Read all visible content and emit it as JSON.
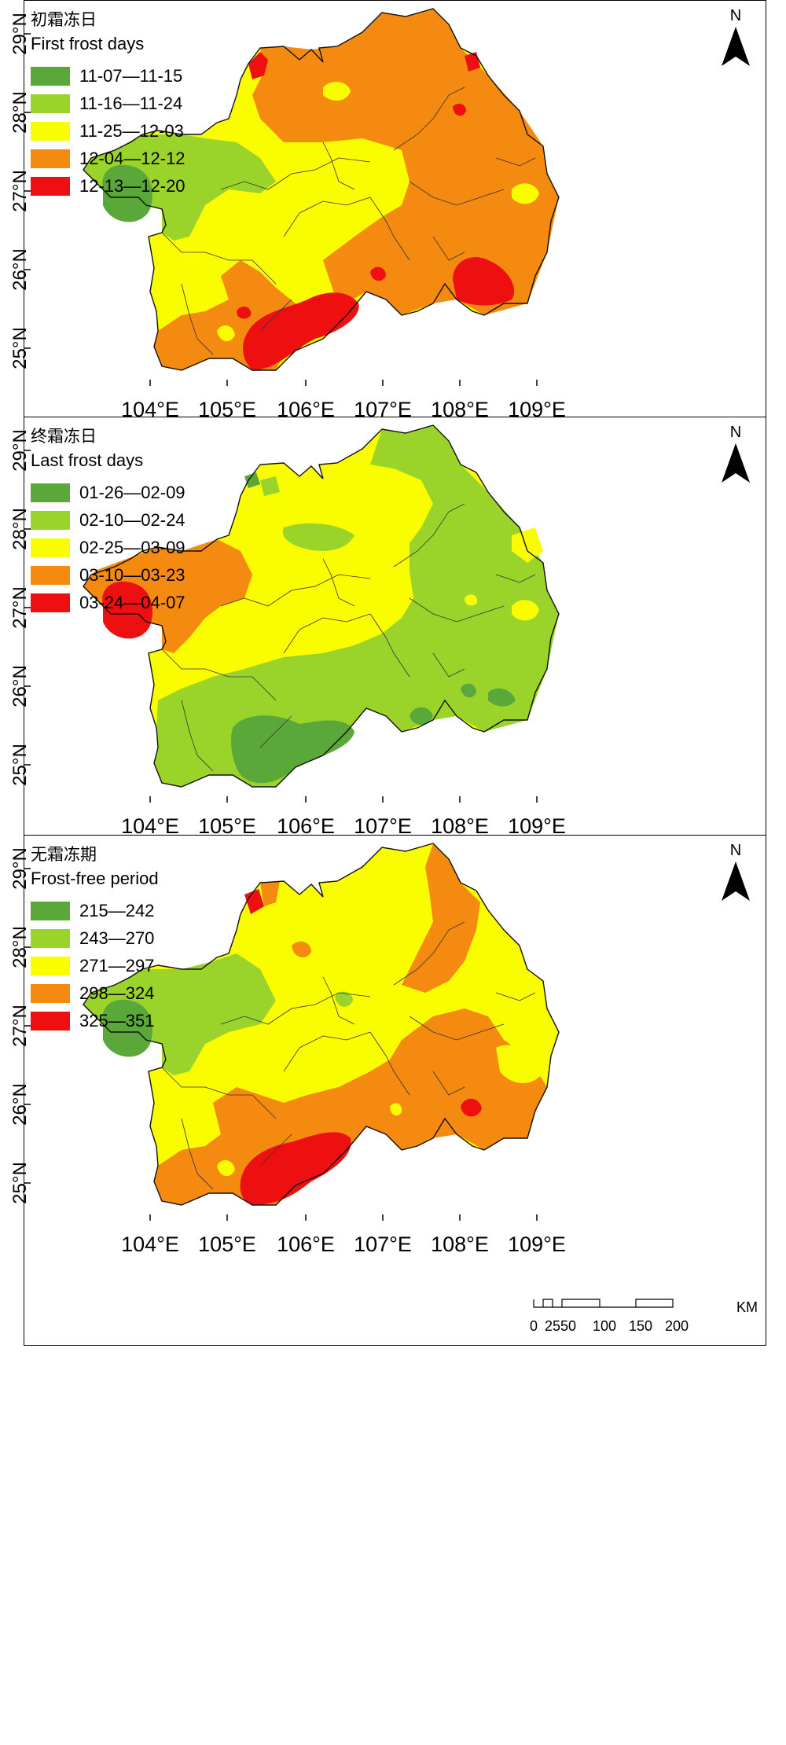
{
  "panels": [
    {
      "title_cn": "初霜冻日",
      "title_en": "First frost days",
      "legend": [
        {
          "label": "11-07—11-15",
          "color": "#5aa83a"
        },
        {
          "label": "11-16—11-24",
          "color": "#9ad42a"
        },
        {
          "label": "11-25—12-03",
          "color": "#fafc00"
        },
        {
          "label": "12-04—12-12",
          "color": "#f58a10"
        },
        {
          "label": "12-13—12-20",
          "color": "#ee1010"
        }
      ]
    },
    {
      "title_cn": "终霜冻日",
      "title_en": "Last frost days",
      "legend": [
        {
          "label": "01-26—02-09",
          "color": "#5aa83a"
        },
        {
          "label": "02-10—02-24",
          "color": "#9ad42a"
        },
        {
          "label": "02-25—03-09",
          "color": "#fafc00"
        },
        {
          "label": "03-10—03-23",
          "color": "#f58a10"
        },
        {
          "label": "03-24—04-07",
          "color": "#ee1010"
        }
      ]
    },
    {
      "title_cn": "无霜冻期",
      "title_en": "Frost-free period",
      "legend": [
        {
          "label": "215—242",
          "color": "#5aa83a"
        },
        {
          "label": "243—270",
          "color": "#9ad42a"
        },
        {
          "label": "271—297",
          "color": "#fafc00"
        },
        {
          "label": "298—324",
          "color": "#f58a10"
        },
        {
          "label": "325—351",
          "color": "#ee1010"
        }
      ]
    }
  ],
  "north_label": "N",
  "scale": {
    "labels": [
      "0",
      "25",
      "50",
      "100",
      "150",
      "200"
    ],
    "unit": "KM"
  },
  "lat_labels": [
    "29°N",
    "28°N",
    "27°N",
    "26°N",
    "25°N"
  ],
  "lon_labels": [
    "104°E",
    "105°E",
    "106°E",
    "107°E",
    "108°E",
    "109°E"
  ]
}
